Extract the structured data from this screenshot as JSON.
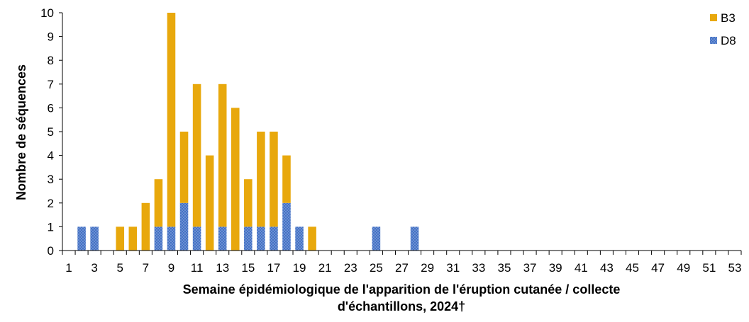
{
  "chart_data": {
    "type": "bar",
    "stacked": true,
    "x": [
      1,
      2,
      3,
      4,
      5,
      6,
      7,
      8,
      9,
      10,
      11,
      12,
      13,
      14,
      15,
      16,
      17,
      18,
      19,
      20,
      21,
      22,
      23,
      24,
      25,
      26,
      27,
      28,
      29,
      30,
      31,
      32,
      33,
      34,
      35,
      36,
      37,
      38,
      39,
      40,
      41,
      42,
      43,
      44,
      45,
      46,
      47,
      48,
      49,
      50,
      51,
      52,
      53
    ],
    "x_tick_labels": [
      "1",
      "3",
      "5",
      "7",
      "9",
      "11",
      "13",
      "15",
      "17",
      "19",
      "21",
      "23",
      "25",
      "27",
      "29",
      "31",
      "33",
      "35",
      "37",
      "39",
      "41",
      "43",
      "45",
      "47",
      "49",
      "51",
      "53"
    ],
    "series": [
      {
        "name": "D8",
        "color": "#4472c4",
        "values": [
          0,
          1,
          1,
          0,
          0,
          0,
          0,
          1,
          1,
          2,
          1,
          0,
          1,
          0,
          1,
          1,
          1,
          2,
          1,
          0,
          0,
          0,
          0,
          0,
          1,
          0,
          0,
          1,
          0,
          0,
          0,
          0,
          0,
          0,
          0,
          0,
          0,
          0,
          0,
          0,
          0,
          0,
          0,
          0,
          0,
          0,
          0,
          0,
          0,
          0,
          0,
          0,
          0
        ]
      },
      {
        "name": "B3",
        "color": "#e8a80c",
        "values": [
          0,
          0,
          0,
          0,
          1,
          1,
          2,
          2,
          9,
          3,
          6,
          4,
          6,
          6,
          2,
          4,
          4,
          2,
          0,
          1,
          0,
          0,
          0,
          0,
          0,
          0,
          0,
          0,
          0,
          0,
          0,
          0,
          0,
          0,
          0,
          0,
          0,
          0,
          0,
          0,
          0,
          0,
          0,
          0,
          0,
          0,
          0,
          0,
          0,
          0,
          0,
          0,
          0
        ]
      }
    ],
    "xlabel_line1": "Semaine épidémiologique de l'apparition de l'éruption cutanée / collecte",
    "xlabel_line2": "d'échantillons, 2024†",
    "ylabel": "Nombre de séquences",
    "ylim": [
      0,
      10
    ],
    "y_ticks": [
      0,
      1,
      2,
      3,
      4,
      5,
      6,
      7,
      8,
      9,
      10
    ],
    "grid": false,
    "legend_position": "top-right",
    "legend": [
      {
        "label": "B3",
        "color": "#e8a80c"
      },
      {
        "label": "D8",
        "color": "#4472c4"
      }
    ]
  }
}
